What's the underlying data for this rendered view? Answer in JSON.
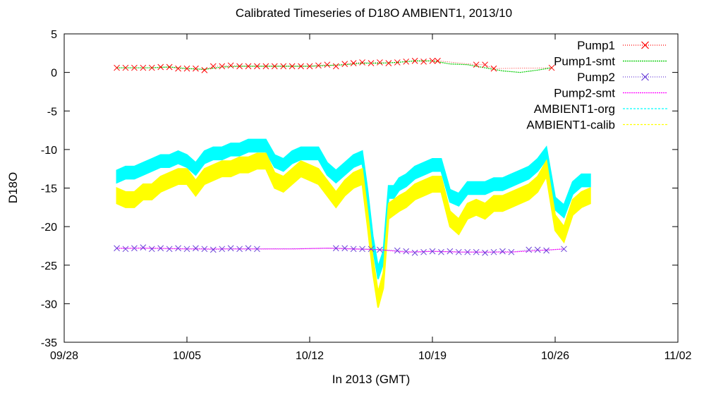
{
  "chart_data": {
    "type": "line",
    "title": "Calibrated Timeseries of D18O AMBIENT1, 2013/10",
    "xlabel": "In 2013 (GMT)",
    "ylabel": "D18O",
    "x_unit": "days (2013-09-28 = 0)",
    "xlim": [
      0,
      35
    ],
    "ylim": [
      -35,
      5
    ],
    "x_ticks": [
      {
        "v": 0,
        "label": "09/28"
      },
      {
        "v": 7,
        "label": "10/05"
      },
      {
        "v": 14,
        "label": "10/12"
      },
      {
        "v": 21,
        "label": "10/19"
      },
      {
        "v": 28,
        "label": "10/26"
      },
      {
        "v": 35,
        "label": "11/02"
      }
    ],
    "y_ticks": [
      5,
      0,
      -5,
      -10,
      -15,
      -20,
      -25,
      -30,
      -35
    ],
    "y_tick_labels": [
      "5",
      "0",
      "-5",
      "-10",
      "-15",
      "-20",
      "-25",
      "-30",
      "-35"
    ],
    "grid": false,
    "legend_position": "top-right",
    "series": [
      {
        "name": "Pump1",
        "style": "points-x",
        "color": "#ff0000",
        "x": [
          3.0,
          3.5,
          4.0,
          4.5,
          5.0,
          5.5,
          6.0,
          6.5,
          7.0,
          7.5,
          8.0,
          8.5,
          9.0,
          9.5,
          10.0,
          10.5,
          11.0,
          11.5,
          12.0,
          12.5,
          13.0,
          13.5,
          14.0,
          14.5,
          15.0,
          15.5,
          16.0,
          16.5,
          17.0,
          17.5,
          18.0,
          18.5,
          19.0,
          19.5,
          20.0,
          20.5,
          21.0,
          21.3,
          23.5,
          24.0,
          24.5,
          27.8
        ],
        "y": [
          0.6,
          0.6,
          0.6,
          0.6,
          0.6,
          0.7,
          0.7,
          0.5,
          0.5,
          0.5,
          0.3,
          0.8,
          0.8,
          0.9,
          0.8,
          0.8,
          0.8,
          0.8,
          0.8,
          0.8,
          0.8,
          0.8,
          0.8,
          0.9,
          1.0,
          0.8,
          1.1,
          1.2,
          1.3,
          1.2,
          1.3,
          1.2,
          1.3,
          1.4,
          1.5,
          1.4,
          1.5,
          1.5,
          1.0,
          1.0,
          0.5,
          0.6
        ]
      },
      {
        "name": "Pump1-smt",
        "style": "line",
        "color": "#00cc00",
        "x": [
          3.0,
          4.0,
          5.0,
          6.0,
          7.0,
          8.0,
          9.0,
          10.0,
          11.0,
          12.0,
          13.0,
          14.0,
          15.0,
          16.0,
          17.0,
          18.0,
          19.0,
          20.0,
          21.0,
          22.0,
          23.0,
          24.0,
          25.0,
          26.0,
          27.0,
          27.8
        ],
        "y": [
          0.6,
          0.6,
          0.6,
          0.7,
          0.5,
          0.4,
          0.7,
          0.8,
          0.8,
          0.8,
          0.8,
          0.8,
          0.9,
          1.0,
          1.2,
          1.2,
          1.3,
          1.5,
          1.5,
          1.1,
          1.0,
          0.6,
          0.2,
          0.0,
          0.3,
          0.6
        ]
      },
      {
        "name": "Pump2",
        "style": "points-x",
        "color": "#6a3fd8",
        "x": [
          3.0,
          3.5,
          4.0,
          4.5,
          5.0,
          5.5,
          6.0,
          6.5,
          7.0,
          7.5,
          8.0,
          8.5,
          9.0,
          9.5,
          10.0,
          10.5,
          11.0,
          15.5,
          16.0,
          16.5,
          17.0,
          17.5,
          18.0,
          19.0,
          19.5,
          20.0,
          20.5,
          21.0,
          21.5,
          22.0,
          22.5,
          23.0,
          23.5,
          24.0,
          24.5,
          25.0,
          25.5,
          26.5,
          27.0,
          27.5,
          28.5
        ],
        "y": [
          -22.8,
          -22.9,
          -22.8,
          -22.7,
          -22.9,
          -22.8,
          -22.9,
          -22.8,
          -22.9,
          -22.8,
          -22.9,
          -23.0,
          -22.9,
          -22.8,
          -22.9,
          -22.8,
          -22.9,
          -22.8,
          -22.8,
          -22.9,
          -22.9,
          -22.9,
          -23.0,
          -23.1,
          -23.2,
          -23.4,
          -23.3,
          -23.2,
          -23.3,
          -23.2,
          -23.3,
          -23.3,
          -23.3,
          -23.4,
          -23.3,
          -23.2,
          -23.3,
          -23.0,
          -23.0,
          -23.1,
          -22.9
        ]
      },
      {
        "name": "Pump2-smt",
        "style": "line",
        "color": "#ff00ff",
        "x": [
          3.0,
          5.0,
          7.0,
          9.0,
          11.0,
          13.0,
          15.0,
          16.5,
          18.0,
          19.5,
          21.0,
          22.5,
          24.0,
          25.5,
          27.0,
          28.5
        ],
        "y": [
          -22.8,
          -22.8,
          -22.9,
          -22.9,
          -22.9,
          -22.9,
          -22.8,
          -22.9,
          -23.0,
          -23.3,
          -23.2,
          -23.3,
          -23.3,
          -23.3,
          -23.1,
          -22.9
        ]
      },
      {
        "name": "AMBIENT1-org",
        "style": "band",
        "color": "#00ffff",
        "x": [
          3.0,
          3.5,
          4.0,
          4.5,
          5.0,
          5.5,
          6.0,
          6.5,
          7.0,
          7.5,
          8.0,
          8.5,
          9.0,
          9.5,
          10.0,
          10.5,
          11.0,
          11.5,
          12.0,
          12.5,
          13.0,
          13.5,
          14.0,
          14.5,
          15.0,
          15.5,
          16.0,
          16.5,
          17.0,
          17.3,
          17.6,
          17.9,
          18.2,
          18.5,
          18.8,
          19.1,
          19.5,
          20.0,
          20.5,
          21.0,
          21.5,
          22.0,
          22.5,
          23.0,
          23.5,
          24.0,
          24.5,
          25.0,
          25.5,
          26.0,
          26.5,
          27.0,
          27.5,
          28.0,
          28.5,
          29.0,
          29.5,
          30.0
        ],
        "y": [
          -13.5,
          -13.0,
          -13.0,
          -12.5,
          -12.0,
          -11.5,
          -11.5,
          -11.0,
          -11.5,
          -12.5,
          -11.0,
          -10.5,
          -10.5,
          -10.0,
          -10.0,
          -9.5,
          -9.5,
          -9.5,
          -11.5,
          -12.0,
          -11.0,
          -10.5,
          -10.5,
          -10.5,
          -12.5,
          -13.5,
          -12.5,
          -11.5,
          -11.0,
          -16.0,
          -22.0,
          -26.0,
          -24.0,
          -15.5,
          -15.5,
          -14.5,
          -14.0,
          -13.0,
          -12.5,
          -12.0,
          -12.0,
          -16.0,
          -16.5,
          -15.0,
          -15.0,
          -15.0,
          -14.5,
          -14.5,
          -14.0,
          -13.5,
          -13.0,
          -12.0,
          -10.5,
          -17.0,
          -18.0,
          -15.0,
          -14.0,
          -14.0
        ],
        "spread": 0.8
      },
      {
        "name": "AMBIENT1-calib",
        "style": "band",
        "color": "#ffff00",
        "x": [
          3.0,
          3.5,
          4.0,
          4.5,
          5.0,
          5.5,
          6.0,
          6.5,
          7.0,
          7.5,
          8.0,
          8.5,
          9.0,
          9.5,
          10.0,
          10.5,
          11.0,
          11.5,
          12.0,
          12.5,
          13.0,
          13.5,
          14.0,
          14.5,
          15.0,
          15.5,
          16.0,
          16.5,
          17.0,
          17.3,
          17.6,
          17.9,
          18.2,
          18.5,
          18.8,
          19.1,
          19.5,
          20.0,
          20.5,
          21.0,
          21.5,
          22.0,
          22.5,
          23.0,
          23.5,
          24.0,
          24.5,
          25.0,
          25.5,
          26.0,
          26.5,
          27.0,
          27.5,
          28.0,
          28.5,
          29.0,
          29.5,
          30.0
        ],
        "y": [
          -16.0,
          -16.5,
          -16.5,
          -15.5,
          -15.5,
          -14.5,
          -14.0,
          -13.5,
          -13.5,
          -15.0,
          -13.5,
          -13.0,
          -12.5,
          -12.5,
          -12.0,
          -12.0,
          -11.5,
          -11.5,
          -14.0,
          -14.5,
          -13.5,
          -12.5,
          -13.0,
          -13.5,
          -15.0,
          -16.5,
          -15.0,
          -14.0,
          -13.5,
          -19.0,
          -25.0,
          -29.5,
          -27.0,
          -18.0,
          -17.5,
          -17.0,
          -16.5,
          -15.5,
          -15.0,
          -14.5,
          -14.5,
          -19.0,
          -20.0,
          -18.0,
          -17.5,
          -18.0,
          -17.0,
          -17.0,
          -16.5,
          -16.0,
          -15.5,
          -14.5,
          -12.5,
          -19.5,
          -21.0,
          -17.5,
          -16.5,
          -16.0
        ],
        "spread": 1.0
      }
    ]
  }
}
